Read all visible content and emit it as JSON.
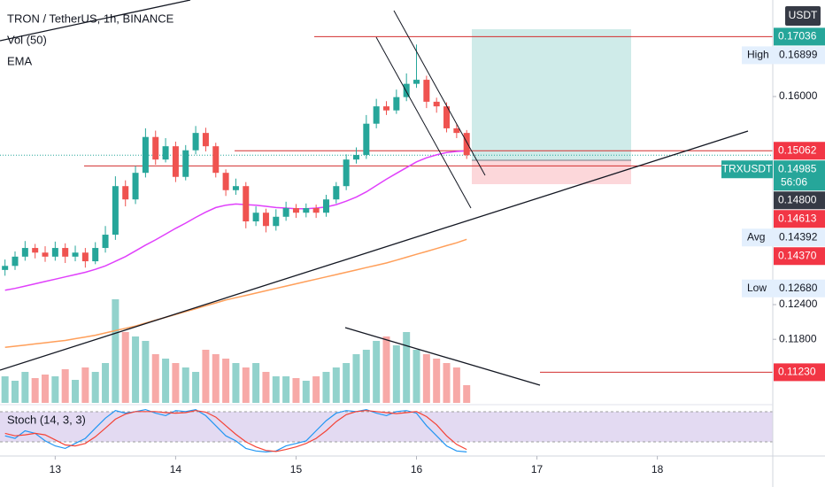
{
  "chart_data": {
    "type": "candlestick",
    "title": "TRON / TetherUS, 1h, BINANCE",
    "indicators": [
      "Vol (50)",
      "EMA"
    ],
    "oscillator_title": "Stoch (14, 3, 3)",
    "currency": "USDT",
    "up_color": "#26a69a",
    "down_color": "#ef5350",
    "xlim": [
      13,
      167
    ],
    "xticks": [
      {
        "value": 24,
        "label": "13"
      },
      {
        "value": 48,
        "label": "14"
      },
      {
        "value": 72,
        "label": "15"
      },
      {
        "value": 96,
        "label": "16"
      },
      {
        "value": 120,
        "label": "17"
      },
      {
        "value": 144,
        "label": "18"
      }
    ],
    "ylim": [
      0.107,
      0.1767
    ],
    "yticks": [
      {
        "value": 0.16,
        "label": "0.16000"
      },
      {
        "value": 0.124,
        "label": "0.12400"
      },
      {
        "value": 0.118,
        "label": "0.11800"
      }
    ],
    "x": [
      14,
      16,
      18,
      20,
      22,
      24,
      26,
      28,
      30,
      32,
      34,
      36,
      38,
      40,
      42,
      44,
      46,
      48,
      50,
      52,
      54,
      56,
      58,
      60,
      62,
      64,
      66,
      68,
      70,
      72,
      74,
      76,
      78,
      80,
      82,
      84,
      86,
      88,
      90,
      92,
      94,
      96,
      98,
      100,
      102,
      104,
      106
    ],
    "open": [
      0.13,
      0.1307,
      0.1323,
      0.1338,
      0.133,
      0.1323,
      0.1338,
      0.1323,
      0.133,
      0.1315,
      0.1338,
      0.1361,
      0.1445,
      0.1422,
      0.1468,
      0.153,
      0.1491,
      0.1514,
      0.1461,
      0.1507,
      0.1537,
      0.1514,
      0.1468,
      0.1438,
      0.1445,
      0.1384,
      0.1399,
      0.1376,
      0.1392,
      0.1407,
      0.1399,
      0.1407,
      0.1399,
      0.1422,
      0.1445,
      0.1491,
      0.1499,
      0.1553,
      0.1583,
      0.1576,
      0.1599,
      0.1622,
      0.1629,
      0.1591,
      0.1583,
      0.1545,
      0.1537
    ],
    "high": [
      0.1318,
      0.1332,
      0.135,
      0.1345,
      0.1341,
      0.1349,
      0.1346,
      0.1342,
      0.1338,
      0.1348,
      0.1376,
      0.1462,
      0.1455,
      0.148,
      0.1545,
      0.1541,
      0.1528,
      0.1522,
      0.1516,
      0.1549,
      0.1546,
      0.152,
      0.1474,
      0.1458,
      0.1452,
      0.141,
      0.1406,
      0.1405,
      0.1418,
      0.1414,
      0.1415,
      0.1413,
      0.143,
      0.1452,
      0.15,
      0.1512,
      0.1568,
      0.1596,
      0.1592,
      0.1612,
      0.164,
      0.169,
      0.1636,
      0.1598,
      0.159,
      0.1552,
      0.1542
    ],
    "low": [
      0.129,
      0.13,
      0.1316,
      0.132,
      0.1314,
      0.1316,
      0.1312,
      0.1315,
      0.1304,
      0.131,
      0.133,
      0.1352,
      0.141,
      0.1414,
      0.146,
      0.1482,
      0.1486,
      0.1452,
      0.1455,
      0.15,
      0.1505,
      0.146,
      0.1428,
      0.143,
      0.1372,
      0.1376,
      0.1365,
      0.1368,
      0.1385,
      0.139,
      0.1391,
      0.139,
      0.1392,
      0.1415,
      0.1438,
      0.1484,
      0.1492,
      0.1545,
      0.1568,
      0.157,
      0.1592,
      0.1615,
      0.158,
      0.1572,
      0.1538,
      0.1528,
      0.1492
    ],
    "close": [
      0.1307,
      0.1323,
      0.1338,
      0.133,
      0.1323,
      0.1338,
      0.1323,
      0.133,
      0.1315,
      0.1338,
      0.1361,
      0.1445,
      0.1422,
      0.1468,
      0.153,
      0.1491,
      0.1514,
      0.1461,
      0.1507,
      0.1537,
      0.1514,
      0.1468,
      0.1438,
      0.1445,
      0.1384,
      0.1399,
      0.1376,
      0.1392,
      0.1407,
      0.1399,
      0.1407,
      0.1399,
      0.1422,
      0.1445,
      0.1491,
      0.1499,
      0.1553,
      0.1583,
      0.1576,
      0.1599,
      0.1622,
      0.1629,
      0.1591,
      0.1583,
      0.1545,
      0.1537,
      0.14985
    ],
    "volume": [
      30,
      25,
      35,
      28,
      32,
      30,
      38,
      26,
      40,
      35,
      45,
      117,
      80,
      75,
      70,
      55,
      50,
      45,
      40,
      35,
      60,
      55,
      50,
      45,
      40,
      45,
      35,
      30,
      30,
      28,
      25,
      30,
      35,
      40,
      45,
      55,
      60,
      70,
      75,
      65,
      80,
      60,
      55,
      50,
      45,
      40,
      20
    ],
    "ema": [
      {
        "color": "#e040fb",
        "values": [
          0.1265,
          0.1268,
          0.1272,
          0.1276,
          0.128,
          0.1284,
          0.1288,
          0.1292,
          0.1296,
          0.1301,
          0.1307,
          0.1315,
          0.1323,
          0.1333,
          0.1343,
          0.1352,
          0.1362,
          0.1372,
          0.1381,
          0.1391,
          0.14,
          0.1408,
          0.1412,
          0.1414,
          0.1413,
          0.1412,
          0.141,
          0.1408,
          0.1407,
          0.1406,
          0.1406,
          0.1407,
          0.1409,
          0.1413,
          0.1419,
          0.1426,
          0.1435,
          0.1446,
          0.1457,
          0.1467,
          0.1477,
          0.1487,
          0.1494,
          0.1499,
          0.1503,
          0.1505,
          0.1506
        ]
      },
      {
        "color": "#ff9f5a",
        "values": [
          0.1166,
          0.1168,
          0.117,
          0.1172,
          0.1174,
          0.1176,
          0.1178,
          0.1181,
          0.1184,
          0.1187,
          0.1191,
          0.1195,
          0.1199,
          0.1203,
          0.1208,
          0.1213,
          0.1218,
          0.1223,
          0.1228,
          0.1233,
          0.1238,
          0.1243,
          0.1248,
          0.1252,
          0.1256,
          0.126,
          0.1264,
          0.1268,
          0.1272,
          0.1276,
          0.128,
          0.1284,
          0.1288,
          0.1292,
          0.1296,
          0.13,
          0.1304,
          0.1308,
          0.1312,
          0.1317,
          0.1322,
          0.1327,
          0.1332,
          0.1337,
          0.1342,
          0.1347,
          0.1353
        ]
      }
    ],
    "stoch": [
      {
        "color": "#2196f3",
        "values": [
          40,
          35,
          50,
          45,
          30,
          20,
          15,
          25,
          35,
          55,
          75,
          90,
          85,
          88,
          92,
          85,
          80,
          90,
          88,
          92,
          80,
          60,
          40,
          30,
          15,
          10,
          8,
          10,
          20,
          25,
          30,
          50,
          70,
          85,
          90,
          88,
          92,
          85,
          80,
          88,
          90,
          85,
          60,
          40,
          20,
          10,
          8
        ]
      },
      {
        "color": "#f44336",
        "values": [
          45,
          40,
          42,
          45,
          42,
          32,
          22,
          20,
          25,
          38,
          55,
          73,
          83,
          88,
          88,
          88,
          86,
          85,
          86,
          90,
          87,
          77,
          60,
          43,
          28,
          18,
          11,
          9,
          13,
          18,
          25,
          35,
          50,
          68,
          82,
          88,
          90,
          88,
          86,
          84,
          86,
          88,
          78,
          62,
          40,
          23,
          13
        ]
      }
    ],
    "price_lines": [
      {
        "value": 0.17036,
        "label": "0.17036",
        "color": "#26a69a",
        "line": true
      },
      {
        "value": 0.15062,
        "label": "0.15062",
        "color": "#f23645",
        "line": true
      },
      {
        "value": 0.148,
        "label": "0.14800",
        "color": "#363a45",
        "line": true
      },
      {
        "value": 0.14613,
        "label": "0.14613",
        "color": "#f23645",
        "line": false
      },
      {
        "value": 0.1437,
        "label": "0.14370",
        "color": "#f23645",
        "line": false
      },
      {
        "value": 0.1123,
        "label": "0.11230",
        "color": "#f23645",
        "line": true
      }
    ],
    "stats": [
      {
        "name": "High",
        "value": 0.16899,
        "label": "0.16899"
      },
      {
        "name": "Avg",
        "value": 0.14392,
        "label": "0.14392"
      },
      {
        "name": "Low",
        "value": 0.1268,
        "label": "0.12680"
      }
    ],
    "last_price": {
      "symbol": "TRXUSDT",
      "value": 0.14985,
      "label": "0.14985",
      "countdown": "56:06",
      "color": "#26a69a"
    }
  }
}
